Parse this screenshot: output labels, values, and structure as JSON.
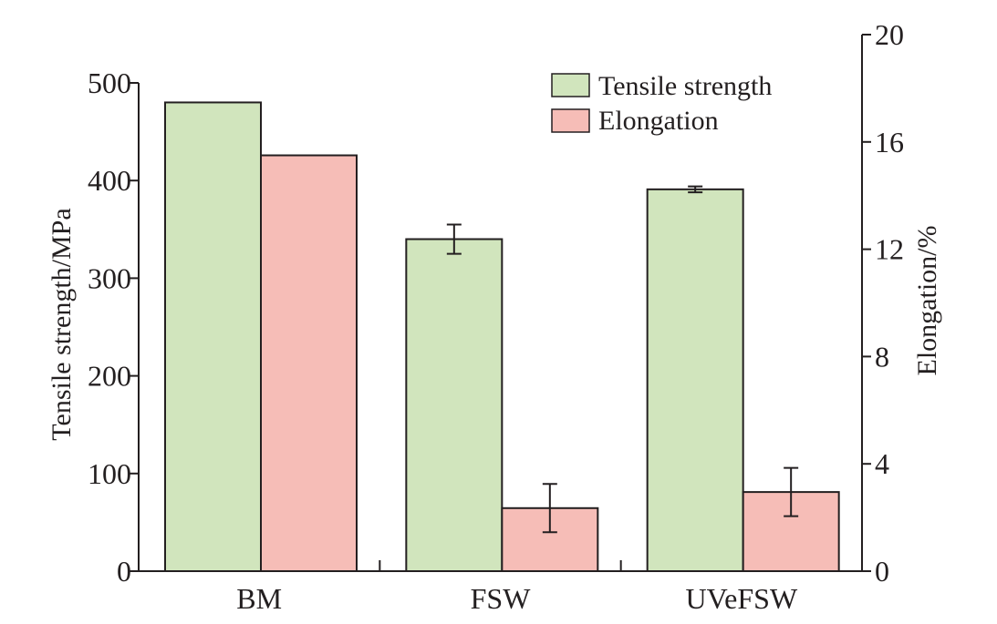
{
  "chart_data": {
    "type": "bar",
    "categories": [
      "BM",
      "FSW",
      "UVeFSW"
    ],
    "series": [
      {
        "name": "Tensile strength",
        "axis": "left",
        "color": "#d1e5bd",
        "values": [
          480,
          340,
          391
        ],
        "errors": [
          null,
          15,
          3
        ]
      },
      {
        "name": "Elongation",
        "axis": "right",
        "color": "#f6bdb7",
        "values": [
          15.5,
          2.35,
          2.95
        ],
        "errors": [
          null,
          0.9,
          0.9
        ]
      }
    ],
    "ylabel": "Tensile strength/MPa",
    "ylim": [
      0,
      500
    ],
    "yticks": [
      "0",
      "100",
      "200",
      "300",
      "400",
      "500"
    ],
    "y2label": "Elongation/%",
    "y2lim": [
      0,
      20
    ],
    "y2ticks": [
      "0",
      "4",
      "8",
      "12",
      "16",
      "20"
    ],
    "legend_position": "top-right",
    "grid": false,
    "bar_edge_color": "#231f20"
  }
}
